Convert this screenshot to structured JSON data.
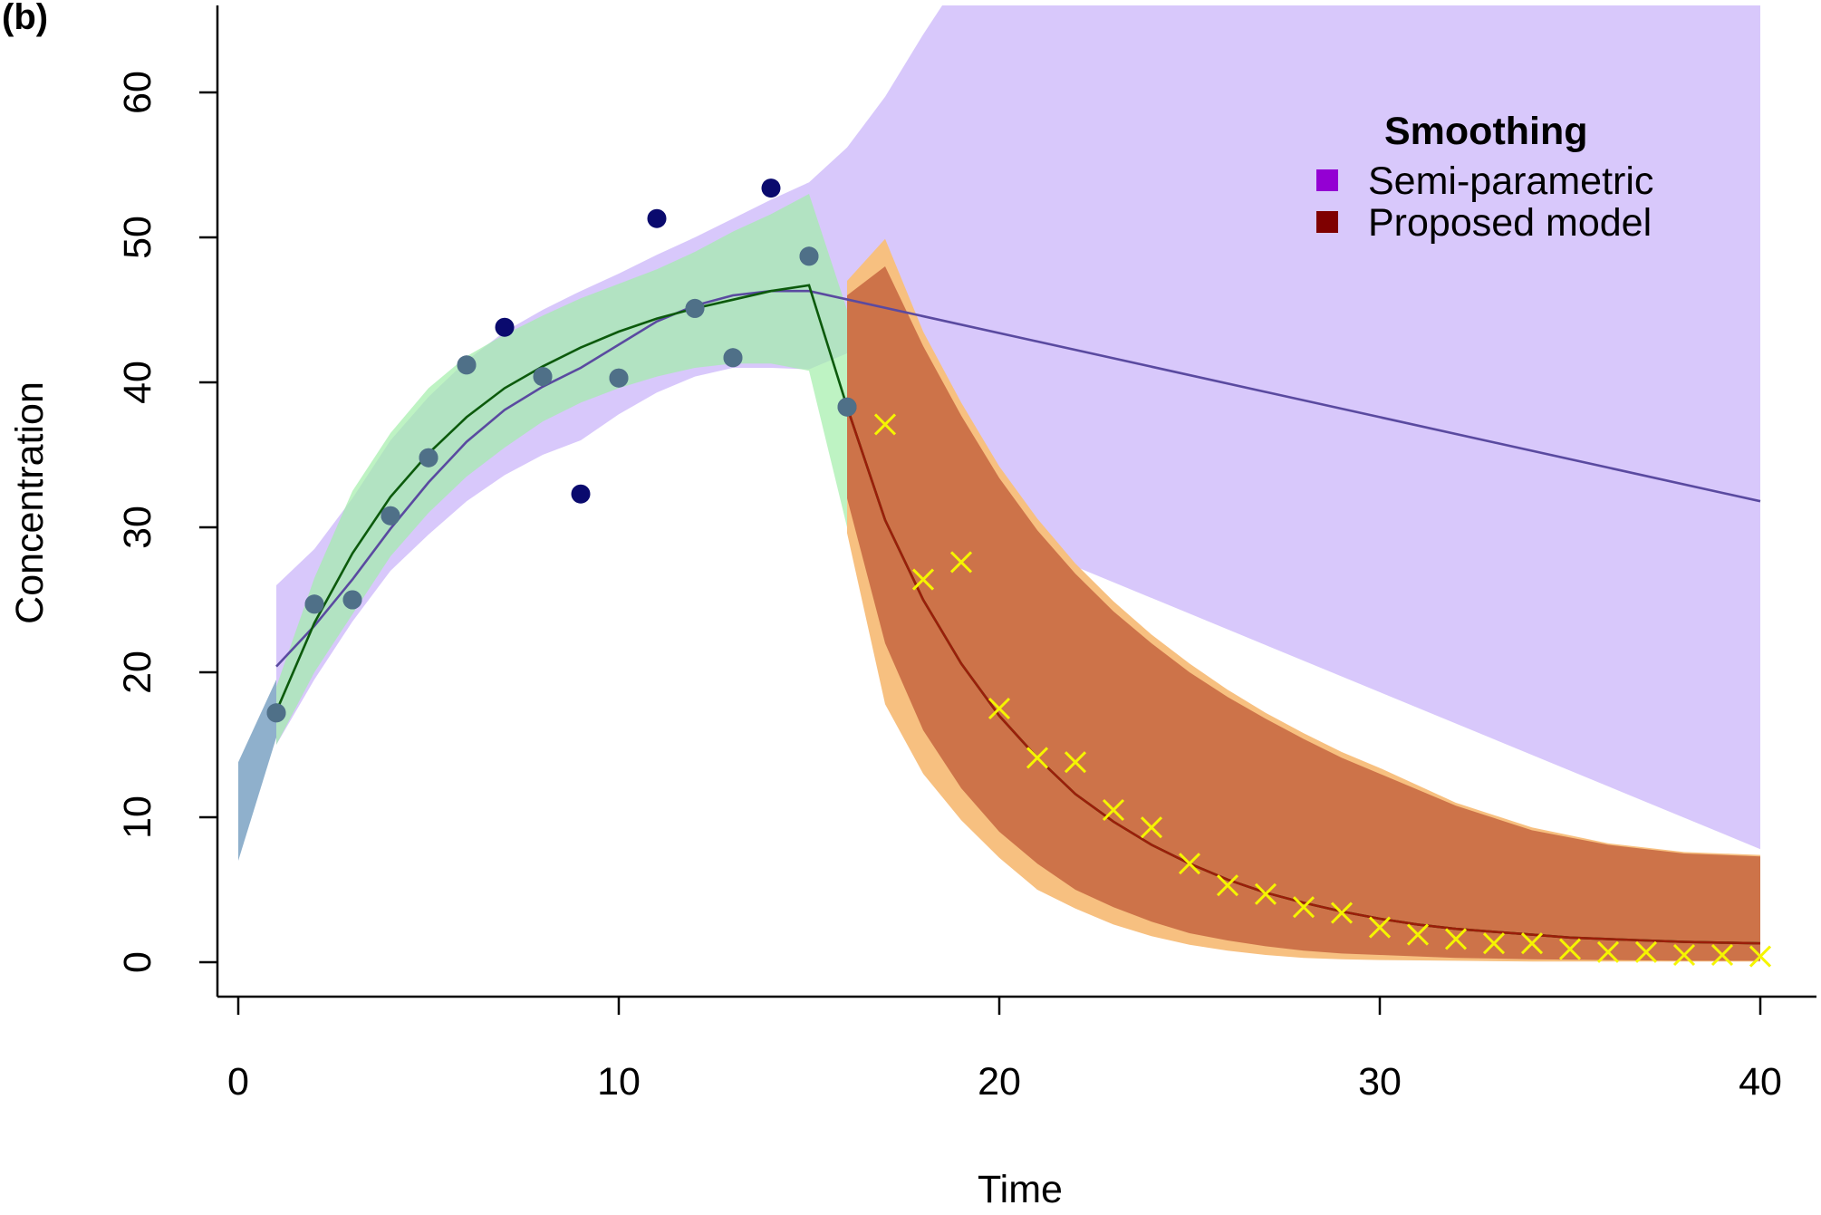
{
  "panel_label": "(b)",
  "chart_data": {
    "type": "line",
    "xlabel": "Time",
    "ylabel": "Concentration",
    "xlim": [
      0,
      40
    ],
    "ylim": [
      0,
      66
    ],
    "xticks": [
      0,
      10,
      20,
      30,
      40
    ],
    "yticks": [
      0,
      10,
      20,
      30,
      40,
      50,
      60
    ],
    "grid": false,
    "legend": {
      "title": "Smoothing",
      "placement": "top-right",
      "entries": [
        {
          "label": "Semi-parametric",
          "color": "#9400d3"
        },
        {
          "label": "Proposed model",
          "color": "#7f0000"
        }
      ]
    },
    "colors": {
      "semi_band": "#d8c8fb",
      "green_band": "#a3eea9",
      "blue_band": "#8fb0cc",
      "orange_band": "#f7c080",
      "proposed_band": "#c6653f",
      "semi_line": "#5a4aa0",
      "green_line": "#0c5a0c",
      "proposed_line": "#9b1e0a",
      "observed_points": "#0a0a6e",
      "forecast_points": "#f5f500"
    },
    "observed_points": {
      "x": [
        1,
        2,
        3,
        4,
        5,
        6,
        7,
        8,
        9,
        10,
        11,
        12,
        13,
        14,
        15,
        16
      ],
      "y": [
        17.2,
        24.7,
        25.0,
        30.8,
        34.8,
        41.2,
        43.8,
        40.4,
        32.3,
        40.3,
        51.3,
        45.1,
        41.7,
        53.4,
        48.7,
        38.3
      ]
    },
    "forecast_points": {
      "x": [
        17,
        18,
        19,
        20,
        21,
        22,
        23,
        24,
        25,
        26,
        27,
        28,
        29,
        30,
        31,
        32,
        33,
        34,
        35,
        36,
        37,
        38,
        39,
        40
      ],
      "y": [
        37.1,
        26.4,
        27.6,
        17.5,
        14.1,
        13.8,
        10.5,
        9.3,
        6.8,
        5.3,
        4.7,
        3.8,
        3.4,
        2.4,
        1.9,
        1.6,
        1.3,
        1.3,
        0.9,
        0.7,
        0.7,
        0.5,
        0.5,
        0.4
      ]
    },
    "semi_parametric_line": {
      "x": [
        1,
        2,
        3,
        4,
        5,
        6,
        7,
        8,
        9,
        10,
        11,
        12,
        13,
        14,
        15,
        40
      ],
      "y": [
        20.4,
        23.2,
        26.4,
        29.9,
        33.1,
        35.9,
        38.1,
        39.7,
        41.0,
        42.6,
        44.2,
        45.3,
        46.0,
        46.3,
        46.3,
        31.8
      ]
    },
    "proposed_line": {
      "x": [
        1,
        2,
        3,
        4,
        5,
        6,
        7,
        8,
        9,
        10,
        11,
        12,
        13,
        14,
        15,
        16,
        17,
        18,
        19,
        20,
        21,
        22,
        23,
        24,
        25,
        26,
        27,
        28,
        29,
        30,
        31,
        32,
        33,
        34,
        35,
        36,
        37,
        38,
        39,
        40
      ],
      "y": [
        17.3,
        23.4,
        28.2,
        32.1,
        35.1,
        37.6,
        39.6,
        41.1,
        42.4,
        43.5,
        44.4,
        45.1,
        45.7,
        46.3,
        46.7,
        38.3,
        30.5,
        25.0,
        20.6,
        17.0,
        14.1,
        11.6,
        9.7,
        8.1,
        6.8,
        5.7,
        4.8,
        4.1,
        3.5,
        3.0,
        2.6,
        2.3,
        2.1,
        1.9,
        1.7,
        1.6,
        1.5,
        1.4,
        1.35,
        1.3
      ]
    },
    "semi_parametric_band": {
      "x": [
        1,
        2,
        3,
        4,
        5,
        6,
        7,
        8,
        9,
        10,
        11,
        12,
        13,
        14,
        15,
        16,
        17,
        18,
        19,
        19.5,
        40
      ],
      "upper": [
        26.0,
        28.5,
        32.0,
        36.0,
        39.0,
        41.5,
        43.5,
        45.0,
        46.3,
        47.5,
        48.8,
        50.0,
        51.3,
        52.6,
        53.8,
        56.2,
        59.7,
        64.0,
        68.0,
        70.0,
        70.0
      ],
      "lower": [
        15.0,
        19.5,
        23.5,
        27.0,
        29.5,
        31.8,
        33.6,
        35.0,
        36.0,
        37.8,
        39.3,
        40.4,
        41.0,
        41.0,
        40.9,
        42.0,
        42.0,
        40.0,
        36.0,
        30.0,
        7.8
      ]
    },
    "green_band": {
      "x": [
        1,
        2,
        3,
        4,
        5,
        6,
        7,
        8,
        9,
        10,
        11,
        12,
        13,
        14,
        15,
        16
      ],
      "upper": [
        19.0,
        26.5,
        32.5,
        36.5,
        39.6,
        41.8,
        43.3,
        44.6,
        45.8,
        46.8,
        47.8,
        49.0,
        50.4,
        51.6,
        53.0,
        45.0
      ],
      "lower": [
        15.0,
        20.0,
        24.0,
        28.0,
        31.0,
        33.5,
        35.5,
        37.3,
        38.6,
        39.6,
        40.4,
        41.0,
        41.3,
        41.3,
        40.8,
        30.0
      ]
    },
    "blue_band": {
      "x": [
        0,
        1
      ],
      "upper": [
        13.8,
        19.5
      ],
      "lower": [
        7.0,
        15.5
      ]
    },
    "orange_band": {
      "x": [
        16,
        17,
        18,
        19,
        20,
        21,
        22,
        23,
        24,
        25,
        26,
        27,
        28,
        29,
        30,
        32,
        34,
        36,
        38,
        40
      ],
      "upper": [
        47.0,
        49.9,
        43.5,
        38.6,
        34.2,
        30.6,
        27.5,
        24.9,
        22.6,
        20.6,
        18.8,
        17.2,
        15.8,
        14.5,
        13.4,
        11.0,
        9.3,
        8.2,
        7.6,
        7.4
      ],
      "lower": [
        29.6,
        17.8,
        13.0,
        9.8,
        7.2,
        5.0,
        3.7,
        2.6,
        1.8,
        1.2,
        0.8,
        0.5,
        0.3,
        0.2,
        0.15,
        0.1,
        0.05,
        0.05,
        0.05,
        0.05
      ]
    },
    "proposed_band": {
      "x": [
        16,
        17,
        18,
        19,
        20,
        21,
        22,
        23,
        24,
        25,
        26,
        27,
        28,
        29,
        30,
        32,
        34,
        36,
        38,
        40
      ],
      "upper": [
        46.0,
        48.0,
        42.5,
        37.7,
        33.4,
        29.8,
        26.8,
        24.2,
        22.0,
        20.0,
        18.3,
        16.8,
        15.4,
        14.1,
        13.0,
        10.8,
        9.1,
        8.1,
        7.5,
        7.3
      ],
      "lower": [
        32.0,
        22.0,
        16.0,
        12.0,
        9.0,
        6.8,
        5.0,
        3.8,
        2.8,
        2.0,
        1.5,
        1.1,
        0.8,
        0.6,
        0.5,
        0.3,
        0.2,
        0.15,
        0.1,
        0.1
      ]
    }
  }
}
